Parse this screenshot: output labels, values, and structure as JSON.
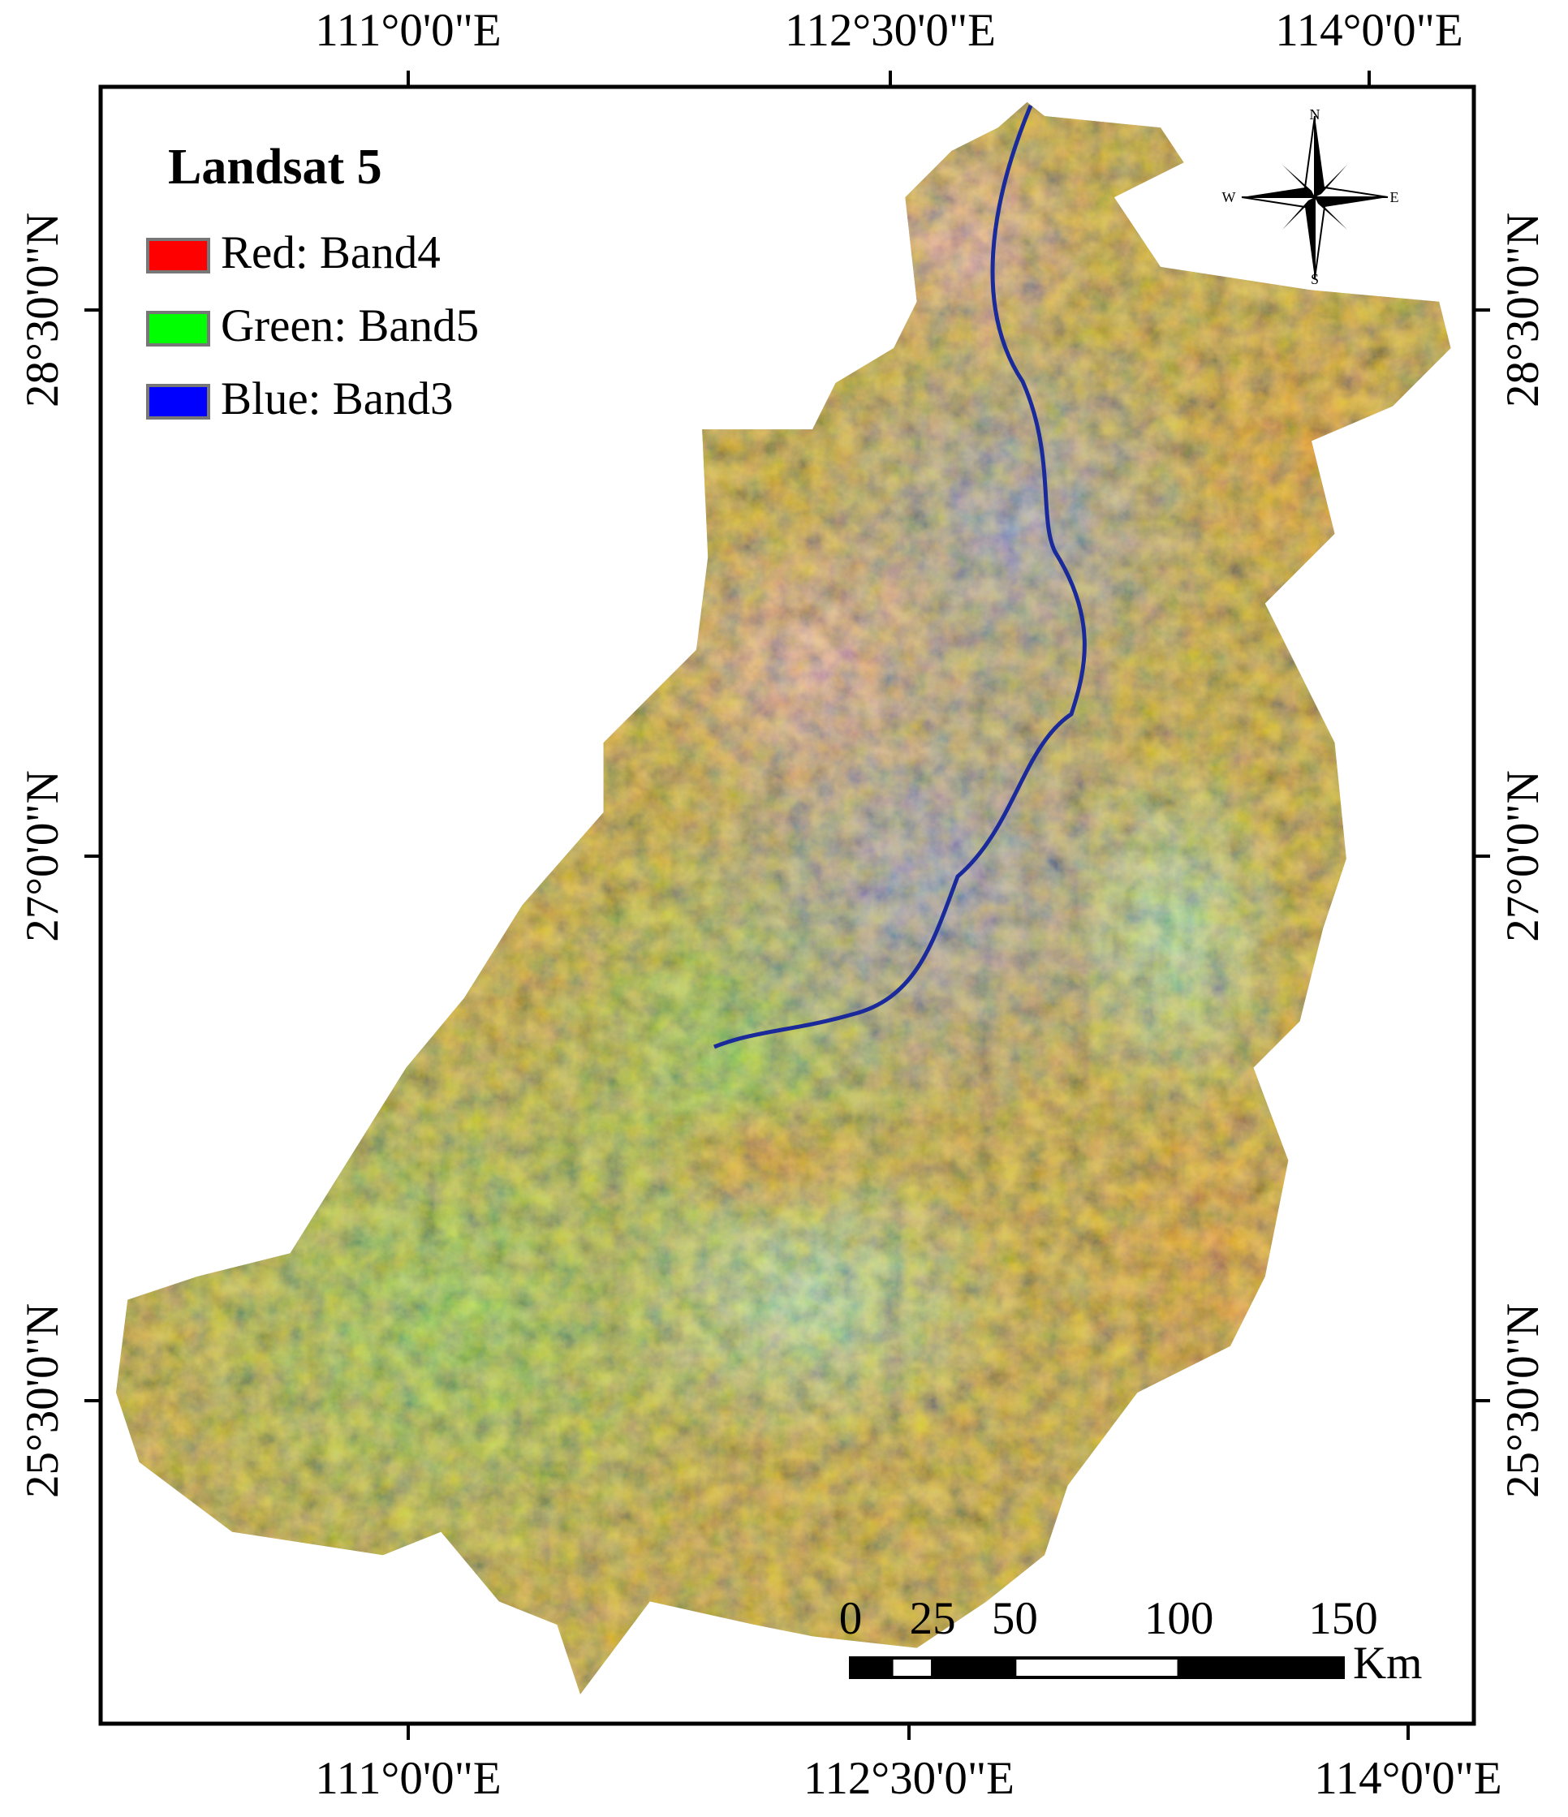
{
  "map": {
    "title": "Landsat 5",
    "legend": [
      {
        "label": "Red: Band4",
        "color": "#ff0000"
      },
      {
        "label": "Green: Band5",
        "color": "#00ff00"
      },
      {
        "label": "Blue: Band3",
        "color": "#0000ff"
      }
    ],
    "top_labels": [
      "111°0'0\"E",
      "112°30'0\"E",
      "114°0'0\"E"
    ],
    "bottom_labels": [
      "111°0'0\"E",
      "112°30'0\"E",
      "114°0'0\"E"
    ],
    "left_labels": [
      "28°30'0\"N",
      "27°0'0\"N",
      "25°30'0\"N"
    ],
    "right_labels": [
      "28°30'0\"N",
      "27°0'0\"N",
      "25°30'0\"N"
    ],
    "compass": {
      "n": "N",
      "s": "S",
      "e": "E",
      "w": "W"
    },
    "scale_bar": {
      "ticks": [
        0,
        25,
        50,
        100,
        150
      ],
      "unit": "Km"
    }
  }
}
